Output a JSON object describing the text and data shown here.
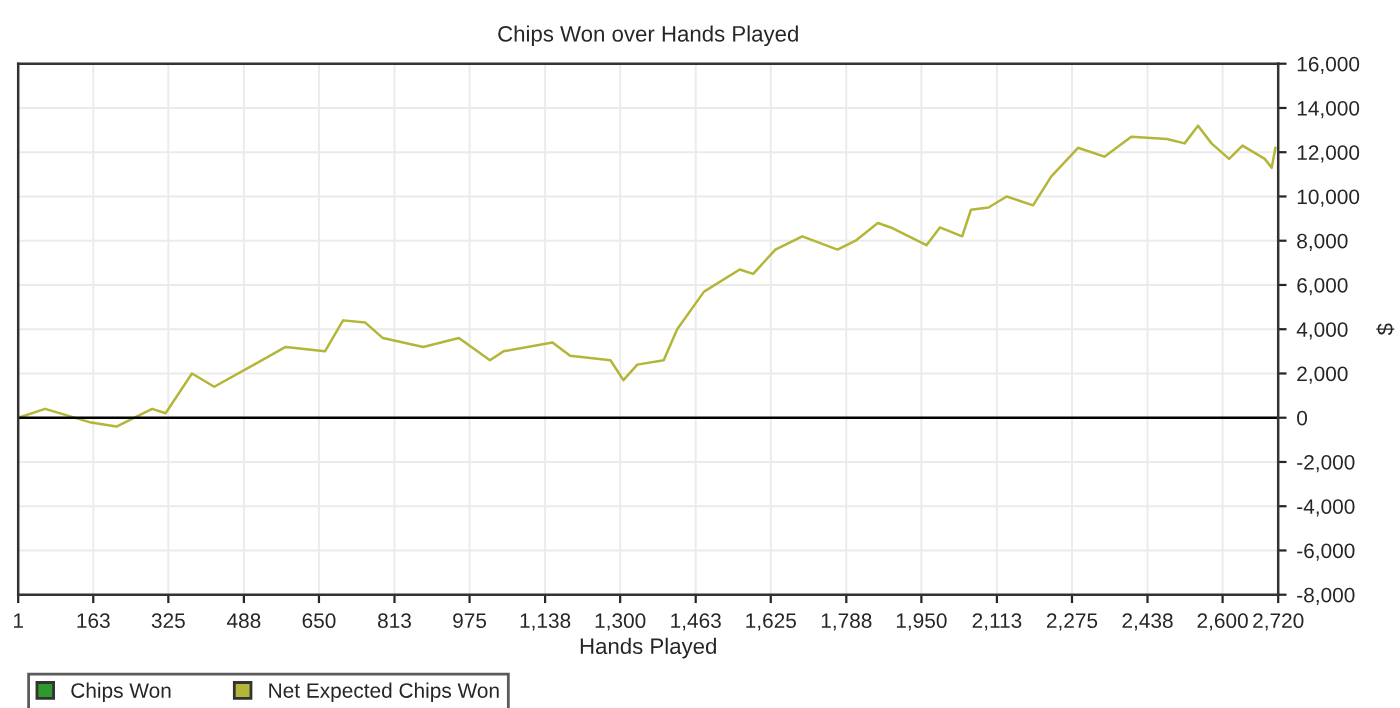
{
  "chart_data": {
    "type": "line",
    "title": "Chips Won over Hands Played",
    "xlabel": "Hands Played",
    "ylabel": "$",
    "x": [
      1,
      59,
      155,
      213,
      290,
      319,
      376,
      424,
      510,
      578,
      663,
      702,
      750,
      788,
      875,
      952,
      1019,
      1048,
      1154,
      1192,
      1279,
      1307,
      1337,
      1394,
      1423,
      1481,
      1558,
      1587,
      1635,
      1693,
      1769,
      1808,
      1856,
      1884,
      1961,
      1990,
      2038,
      2057,
      2095,
      2134,
      2191,
      2230,
      2288,
      2345,
      2403,
      2480,
      2518,
      2547,
      2576,
      2614,
      2643,
      2691,
      2706,
      2714
    ],
    "series": [
      {
        "name": "Chips Won",
        "color": "#2e9a2e",
        "values": [
          null,
          null,
          null,
          null,
          null,
          null,
          null,
          null,
          null,
          null,
          null,
          null,
          null,
          null,
          null,
          null,
          null,
          null,
          null,
          null,
          null,
          null,
          null,
          null,
          null,
          null,
          null,
          null,
          null,
          null,
          null,
          null,
          null,
          null,
          null,
          null,
          null,
          null,
          null,
          null,
          null,
          null,
          null,
          null,
          null,
          null,
          null,
          null,
          null,
          null,
          null,
          null,
          null,
          null
        ]
      },
      {
        "name": "Net Expected Chips Won",
        "color": "#b3b638",
        "values": [
          0,
          400,
          -200,
          -400,
          400,
          200,
          2000,
          1400,
          2400,
          3200,
          3000,
          4400,
          4300,
          3600,
          3200,
          3600,
          2600,
          3000,
          3400,
          2800,
          2600,
          1700,
          2400,
          2600,
          4000,
          5700,
          6700,
          6500,
          7600,
          8200,
          7600,
          8000,
          8800,
          8600,
          7800,
          8600,
          8200,
          9400,
          9500,
          10000,
          9600,
          10900,
          12200,
          11800,
          12700,
          12600,
          12400,
          13200,
          12400,
          11700,
          12300,
          11700,
          11300,
          12200
        ]
      }
    ],
    "xlim": [
      1,
      2720
    ],
    "xticks": [
      1,
      163,
      325,
      488,
      650,
      813,
      975,
      {
        "value": 1138,
        "label": "1,138"
      },
      {
        "value": 1300,
        "label": "1,300"
      },
      {
        "value": 1463,
        "label": "1,463"
      },
      {
        "value": 1625,
        "label": "1,625"
      },
      {
        "value": 1788,
        "label": "1,788"
      },
      {
        "value": 1950,
        "label": "1,950"
      },
      {
        "value": 2113,
        "label": "2,113"
      },
      {
        "value": 2275,
        "label": "2,275"
      },
      {
        "value": 2438,
        "label": "2,438"
      },
      {
        "value": 2600,
        "label": "2,600"
      },
      {
        "value": 2720,
        "label": "2,720"
      }
    ],
    "ylim": [
      -8000,
      16000
    ],
    "yticks": [
      {
        "value": -8000,
        "label": "-8,000"
      },
      {
        "value": -6000,
        "label": "-6,000"
      },
      {
        "value": -4000,
        "label": "-4,000"
      },
      {
        "value": -2000,
        "label": "-2,000"
      },
      0,
      {
        "value": 2000,
        "label": "2,000"
      },
      {
        "value": 4000,
        "label": "4,000"
      },
      {
        "value": 6000,
        "label": "6,000"
      },
      {
        "value": 8000,
        "label": "8,000"
      },
      {
        "value": 10000,
        "label": "10,000"
      },
      {
        "value": 12000,
        "label": "12,000"
      },
      {
        "value": 14000,
        "label": "14,000"
      },
      {
        "value": 16000,
        "label": "16,000"
      }
    ],
    "ref_lines": [
      {
        "axis": "y",
        "value": 0,
        "color": "#000000"
      }
    ],
    "grid": true,
    "legend": "bottom left"
  }
}
